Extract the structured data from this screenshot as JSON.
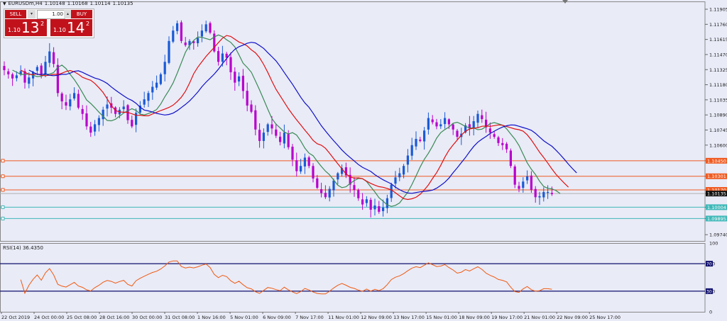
{
  "header": {
    "symbol_timeframe": "EURUSDm,H4",
    "open": "1.10148",
    "high": "1.10168",
    "low": "1.10114",
    "close": "1.10135"
  },
  "trade_panel": {
    "sell_label": "SELL",
    "buy_label": "BUY",
    "lot_value": "1.00",
    "sell_prefix": "1.10",
    "sell_big": "13",
    "sell_sup": "2",
    "buy_prefix": "1.10",
    "buy_big": "14",
    "buy_sup": "2"
  },
  "price_axis": [
    "1.11905",
    "1.11760",
    "1.11615",
    "1.11470",
    "1.11325",
    "1.11180",
    "1.11035",
    "1.10890",
    "1.10745",
    "1.10600",
    "1.10450",
    "1.10301",
    "1.10170",
    "1.10135",
    "1.10004",
    "1.09895",
    "1.09740"
  ],
  "price_range": [
    1.0968,
    1.1198
  ],
  "level_lines": [
    {
      "value": 1.1045,
      "label": "1.10450",
      "color": "#f05a20"
    },
    {
      "value": 1.10301,
      "label": "1.10301",
      "color": "#f05a20"
    },
    {
      "value": 1.1017,
      "label": "1.10170",
      "color": "#f05a20"
    },
    {
      "value": 1.10004,
      "label": "1.10004",
      "color": "#3fb8b8"
    },
    {
      "value": 1.09895,
      "label": "1.09895",
      "color": "#3fb8b8"
    }
  ],
  "current_price": {
    "value": 1.10135,
    "label": "1.10135"
  },
  "time_axis": [
    "22 Oct 2019",
    "24 Oct 00:00",
    "25 Oct 08:00",
    "28 Oct 16:00",
    "30 Oct 00:00",
    "31 Oct 08:00",
    "1 Nov 16:00",
    "5 Nov 01:00",
    "6 Nov 09:00",
    "7 Nov 17:00",
    "11 Nov 01:00",
    "12 Nov 09:00",
    "13 Nov 17:00",
    "15 Nov 01:00",
    "18 Nov 09:00",
    "19 Nov 17:00",
    "21 Nov 01:00",
    "22 Nov 09:00",
    "25 Nov 17:00"
  ],
  "indicator": {
    "label": "RSI(14) 36.4350",
    "axis": [
      "100",
      "70",
      "30",
      "0"
    ],
    "levels": [
      70,
      30
    ]
  },
  "colors": {
    "bull_candle": "#1a5ad6",
    "bear_candle": "#b800cc",
    "ma_blue": "#1010c8",
    "ma_red": "#e01010",
    "ma_green": "#3a8a55",
    "rsi_line": "#f05a10",
    "rsi_level": "#10106e",
    "background": "#e9ebf7"
  },
  "chart_data": {
    "type": "candlestick",
    "instrument": "EURUSDm",
    "timeframe": "H4",
    "ylim": [
      1.0968,
      1.1198
    ],
    "closes": [
      1.1132,
      1.1128,
      1.1124,
      1.1127,
      1.1131,
      1.112,
      1.1125,
      1.113,
      1.1135,
      1.1128,
      1.114,
      1.115,
      1.1138,
      1.111,
      1.1102,
      1.1098,
      1.1104,
      1.111,
      1.1096,
      1.109,
      1.1078,
      1.1072,
      1.108,
      1.1086,
      1.1094,
      1.1099,
      1.1096,
      1.109,
      1.1094,
      1.1097,
      1.1084,
      1.1078,
      1.1091,
      1.1098,
      1.1104,
      1.111,
      1.1116,
      1.112,
      1.1128,
      1.114,
      1.116,
      1.117,
      1.1177,
      1.116,
      1.1156,
      1.116,
      1.1158,
      1.1163,
      1.117,
      1.1176,
      1.1168,
      1.115,
      1.114,
      1.1148,
      1.1144,
      1.113,
      1.112,
      1.1126,
      1.1112,
      1.1098,
      1.1092,
      1.1075,
      1.1064,
      1.1072,
      1.108,
      1.1076,
      1.1069,
      1.1063,
      1.1072,
      1.1058,
      1.1046,
      1.1035,
      1.104,
      1.1048,
      1.104,
      1.1028,
      1.1019,
      1.1014,
      1.101,
      1.1018,
      1.1026,
      1.1033,
      1.1038,
      1.1031,
      1.1022,
      1.1017,
      1.1009,
      1.1003,
      1.1008,
      1.0998,
      1.1002,
      1.0996,
      1.1,
      1.1009,
      1.1022,
      1.1029,
      1.1033,
      1.104,
      1.105,
      1.106,
      1.1066,
      1.1064,
      1.1074,
      1.1086,
      1.1082,
      1.1078,
      1.108,
      1.1086,
      1.108,
      1.1075,
      1.1068,
      1.1071,
      1.1079,
      1.1076,
      1.1083,
      1.109,
      1.1085,
      1.1077,
      1.1072,
      1.1068,
      1.1062,
      1.106,
      1.1056,
      1.104,
      1.1022,
      1.1018,
      1.1025,
      1.103,
      1.1017,
      1.101,
      1.1011,
      1.1015,
      1.1015,
      1.1013
    ]
  }
}
